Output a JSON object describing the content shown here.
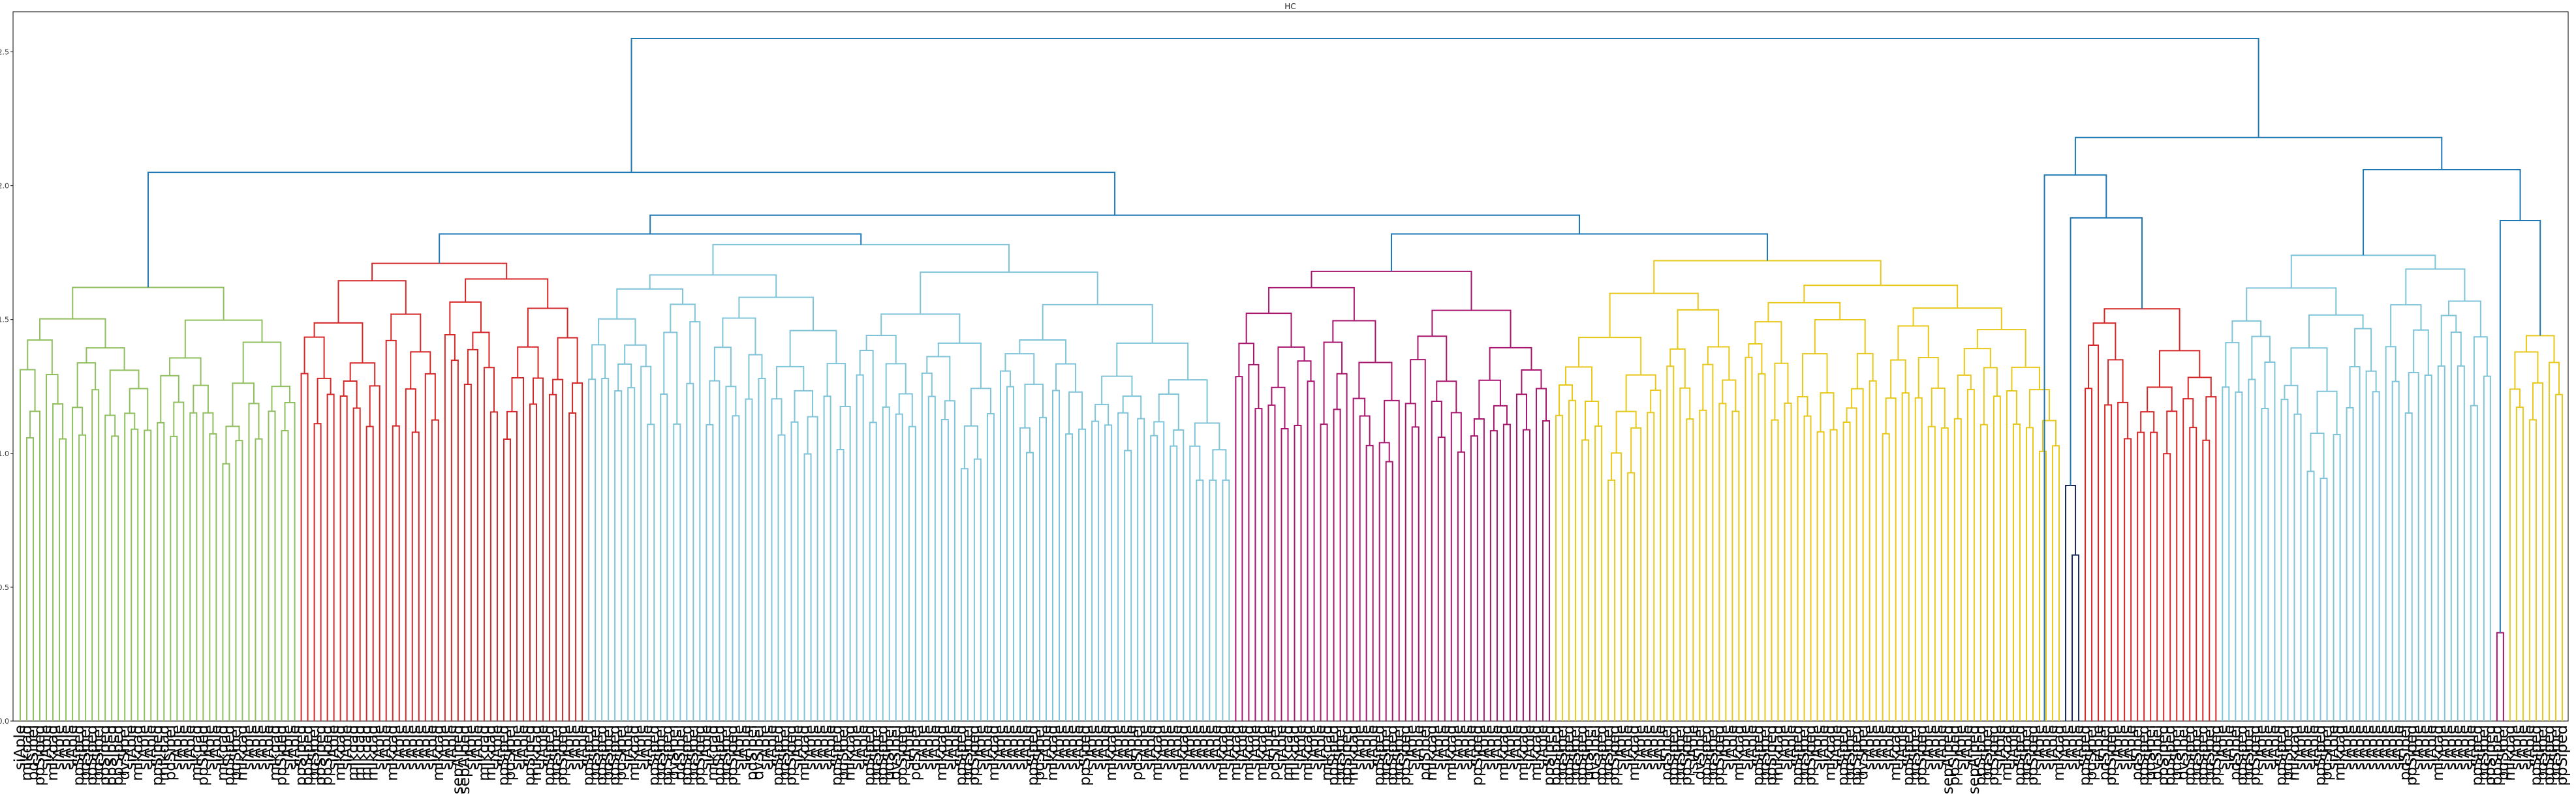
{
  "chart_data": {
    "type": "dendrogram",
    "title": "HC",
    "xlabel": "",
    "ylabel": "",
    "ylim": [
      0,
      2.65
    ],
    "yticks": [
      0.0,
      0.5,
      1.0,
      1.5,
      2.0,
      2.5
    ],
    "ytick_labels": [
      "0.0",
      "0.5",
      "1.0",
      "1.5",
      "2.0",
      "2.5"
    ],
    "grid": false,
    "above_threshold_color": "#1f77b4",
    "clusters": [
      {
        "color": "#8fbf5f",
        "leaves": 43,
        "top_height": 1.62,
        "labels": [
          "siAple",
          "mIkqad",
          "pdSipel",
          "ppSiped",
          "siAple",
          "mIkqad",
          "siAple",
          "siAple",
          "siAple",
          "ppSiped",
          "pdSipel",
          "ppSiped",
          "pdSipel",
          "ppSiped",
          "ppSiped",
          "ppSiped",
          "dvSipel",
          "siAple",
          "mIkqad",
          "siAple",
          "siAple",
          "ppSiped",
          "mIkqad",
          "pdSipel",
          "siAple",
          "siAple",
          "siAple",
          "mIkqad",
          "ppSiped",
          "siAple",
          "siAple",
          "mIkqad",
          "ppSiped",
          "pdSipel",
          "mIkqad",
          "siAple",
          "siAple",
          "siAple",
          "siAple",
          "mIkqad",
          "ppSiped",
          "siAple",
          "siAple"
        ]
      },
      {
        "color": "#d62728",
        "leaves": 44,
        "top_height": 1.71,
        "labels": [
          "ppSiped",
          "ppSiped",
          "pdSipel",
          "ppSiped",
          "ppSiped",
          "siAple",
          "mIkqad",
          "siAple",
          "mIkqad",
          "mIkqad",
          "mIkqad",
          "mIkqad",
          "siAple",
          "siAple",
          "mIkqad",
          "siAple",
          "siAple",
          "siAple",
          "siAple",
          "siAple",
          "siAple",
          "mIkqad",
          "siAple",
          "siAple",
          "sepAiped",
          "sepAiped",
          "siAple",
          "siAple",
          "mIkqad",
          "mIkqad",
          "siAple",
          "ppSiped",
          "pdSipel",
          "siAple",
          "siAple",
          "ppSiped",
          "mIkqad",
          "siAple",
          "ppSiped",
          "pdSipel",
          "ppSiped",
          "siAple",
          "siAple",
          "siAple"
        ]
      },
      {
        "color": "#7fc4d8",
        "leaves": 99,
        "top_height": 1.78,
        "labels": [
          "ppSiped",
          "pdSipel",
          "ppSiped",
          "pdSipel",
          "ppSiped",
          "pdSipel",
          "siAple",
          "mIkqad",
          "siAple",
          "siAple",
          "ppSiped",
          "pdSipel",
          "ppSiped",
          "dvSipel",
          "pdSipel",
          "ppSiped",
          "pdSipel",
          "ppSiped",
          "siAple",
          "mIkqad",
          "ppSiped",
          "pdSipel",
          "ppSiped",
          "siAple",
          "siAple",
          "pdSipel",
          "dvSipel",
          "siAple",
          "siAple",
          "ppSiped",
          "pdSipel",
          "ppSiped",
          "siAple",
          "mIkqad",
          "siAple",
          "siAple",
          "siAple",
          "siAple",
          "ppSiped",
          "pdSipel",
          "mIkqad",
          "siAple",
          "siAple",
          "ppSiped",
          "pdSipel",
          "ppSiped",
          "pdSipel",
          "dvSipel",
          "ppSiped",
          "siAple",
          "pdSipel",
          "siAple",
          "siAple",
          "siAple",
          "mIkqad",
          "siAple",
          "siAple",
          "ppSiped",
          "pdSipel",
          "ppSiped",
          "siAple",
          "siAple",
          "mIkqad",
          "siAple",
          "siAple",
          "siAple",
          "siAple",
          "siAple",
          "ppSiped",
          "pdSipel",
          "siAple",
          "mIkqad",
          "siAple",
          "siAple",
          "siAple",
          "siAple",
          "ppSiped",
          "siAple",
          "siAple",
          "siAple",
          "mIkqad",
          "siAple",
          "siAple",
          "siAple",
          "pdSipel",
          "siAple",
          "siAple",
          "mIkqad",
          "siAple",
          "siAple",
          "siAple",
          "mIkqad",
          "siAple",
          "siAple",
          "siAple",
          "siAple",
          "siAple",
          "mIkqad",
          "siAple"
        ]
      },
      {
        "color": "#a8146e",
        "leaves": 49,
        "top_height": 1.68,
        "labels": [
          "mIkqad",
          "siAple",
          "mIkqad",
          "siAple",
          "mIkqad",
          "siAple",
          "pdSipel",
          "siAple",
          "mIkqad",
          "mIkqad",
          "siAple",
          "mIkqad",
          "siAple",
          "siAple",
          "mIkqad",
          "ppSiped",
          "pdSipel",
          "ppSiped",
          "mIkqad",
          "siAple",
          "siAple",
          "siAple",
          "ppSiped",
          "pdSipel",
          "ppSiped",
          "pdSipel",
          "ppSiped",
          "siAple",
          "siAple",
          "pdSipel",
          "mIkqad",
          "siAple",
          "siAple",
          "mIkqad",
          "siAple",
          "siAple",
          "siAple",
          "ppSiped",
          "siAple",
          "siAple",
          "siAple",
          "mIkqad",
          "siAple",
          "siAple",
          "mIkqad",
          "siAple",
          "mIkqad",
          "siAple",
          "ppSiped"
        ]
      },
      {
        "color": "#e8c81a",
        "leaves": 78,
        "top_height": 1.72,
        "labels": [
          "ppSiped",
          "pdSipel",
          "ppSiped",
          "pdSipel",
          "ppSiped",
          "pdSipel",
          "dvSipel",
          "ppSiped",
          "pdSipel",
          "ppSiped",
          "siAple",
          "siAple",
          "mIkqad",
          "siAple",
          "siAple",
          "siAple",
          "siAple",
          "pdSipel",
          "ppSiped",
          "pdSipel",
          "ppSiped",
          "siAple",
          "dvSipel",
          "ppSiped",
          "pdSipel",
          "ppSiped",
          "siAple",
          "siAple",
          "mIkqad",
          "siAple",
          "siAple",
          "ppSiped",
          "pdSipel",
          "ppSiped",
          "mIkqad",
          "siAple",
          "siAple",
          "ppSiped",
          "pdSipel",
          "ppSiped",
          "siAple",
          "siAple",
          "mIkqad",
          "siAple",
          "ppSiped",
          "pdSipel",
          "ppSiped",
          "dvSipel",
          "siAple",
          "siAple",
          "siAple",
          "siAple",
          "mIkqad",
          "siAple",
          "ppSiped",
          "pdSipel",
          "ppSiped",
          "siAple",
          "siAple",
          "siAple",
          "sepAiped",
          "ppSiped",
          "siAple",
          "siAple",
          "sepAiped",
          "ppSiped",
          "pdSipel",
          "ppSiped",
          "siAple",
          "mIkqad",
          "siAple",
          "ppSiped",
          "pdSipel",
          "ppSiped",
          "siAple",
          "siAple",
          "siAple",
          "mIkqad"
        ]
      },
      {
        "color": "#1b2a55",
        "leaves": 3,
        "top_height": 0.88,
        "labels": [
          "siAple",
          "siAple",
          "siAple"
        ]
      },
      {
        "color": "#d62728",
        "leaves": 21,
        "top_height": 1.54,
        "labels": [
          "ppSiped",
          "pdSipel",
          "siAple",
          "pdSipel",
          "ppSiped",
          "siAple",
          "siAple",
          "siAple",
          "pdSipel",
          "ppSiped",
          "pdSipel",
          "dvSipel",
          "ppSiped",
          "ppSiped",
          "pdSipel",
          "dvSipel",
          "ppSiped",
          "pdSipel",
          "ppSiped",
          "pdSipel",
          "ppSiped"
        ]
      },
      {
        "color": "#7fc4d8",
        "leaves": 42,
        "top_height": 1.74,
        "labels": [
          "siAple",
          "siAple",
          "pdSipel",
          "ppSiped",
          "pdSipel",
          "ppSiped",
          "siAple",
          "siAple",
          "siAple",
          "ppSiped",
          "pdSipel",
          "mIkqad",
          "siAple",
          "siAple",
          "siAple",
          "ppSiped",
          "pdSipel",
          "siAple",
          "mIkqad",
          "siAple",
          "siAple",
          "siAple",
          "siAple",
          "siAple",
          "siAple",
          "siAple",
          "siAple",
          "siAple",
          "pdSipel",
          "ppSiped",
          "siAple",
          "siAple",
          "siAple",
          "mIkqad",
          "siAple",
          "siAple",
          "siAple",
          "siAple",
          "siAple",
          "ppSiped",
          "pdSipel",
          "ppSiped"
        ]
      },
      {
        "color": "#a8146e",
        "leaves": 2,
        "top_height": 0.33,
        "labels": [
          "ppSiped",
          "pdSipel"
        ]
      },
      {
        "color": "#e8c81a",
        "leaves": 9,
        "top_height": 1.44,
        "labels": [
          "mIkqad",
          "siAple",
          "siAple",
          "siAple",
          "ppSiped",
          "pdSipel",
          "ppSiped",
          "pdSipel",
          "ppSiped"
        ]
      }
    ],
    "upper_links": [
      {
        "left": [
          0
        ],
        "right": [
          1,
          2,
          3,
          4
        ],
        "note": "groups"
      }
    ]
  }
}
